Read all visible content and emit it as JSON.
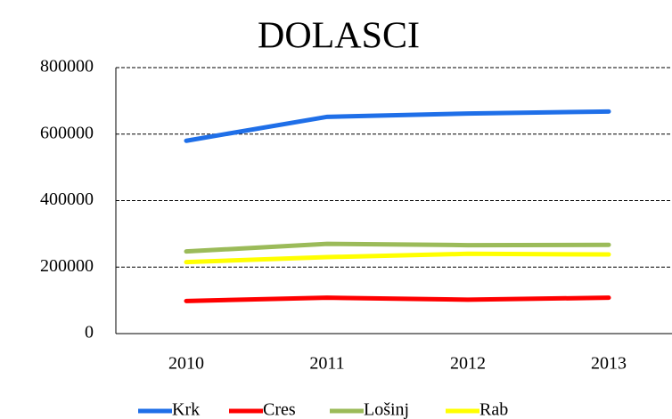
{
  "chart_data": {
    "type": "line",
    "title": "DOLASCI",
    "categories": [
      "2010",
      "2011",
      "2012",
      "2013"
    ],
    "series": [
      {
        "name": "Krk",
        "color": "#1f6fe8",
        "values": [
          580000,
          652000,
          662000,
          668000
        ]
      },
      {
        "name": "Cres",
        "color": "#ff0000",
        "values": [
          98000,
          108000,
          102000,
          108000
        ]
      },
      {
        "name": "Lošinj",
        "color": "#9bbb59",
        "values": [
          247000,
          270000,
          266000,
          267000
        ]
      },
      {
        "name": "Rab",
        "color": "#ffff00",
        "values": [
          215000,
          230000,
          240000,
          238000
        ]
      }
    ],
    "ylim": [
      0,
      800000
    ],
    "yticks": [
      0,
      200000,
      400000,
      600000,
      800000
    ],
    "grid": true
  }
}
